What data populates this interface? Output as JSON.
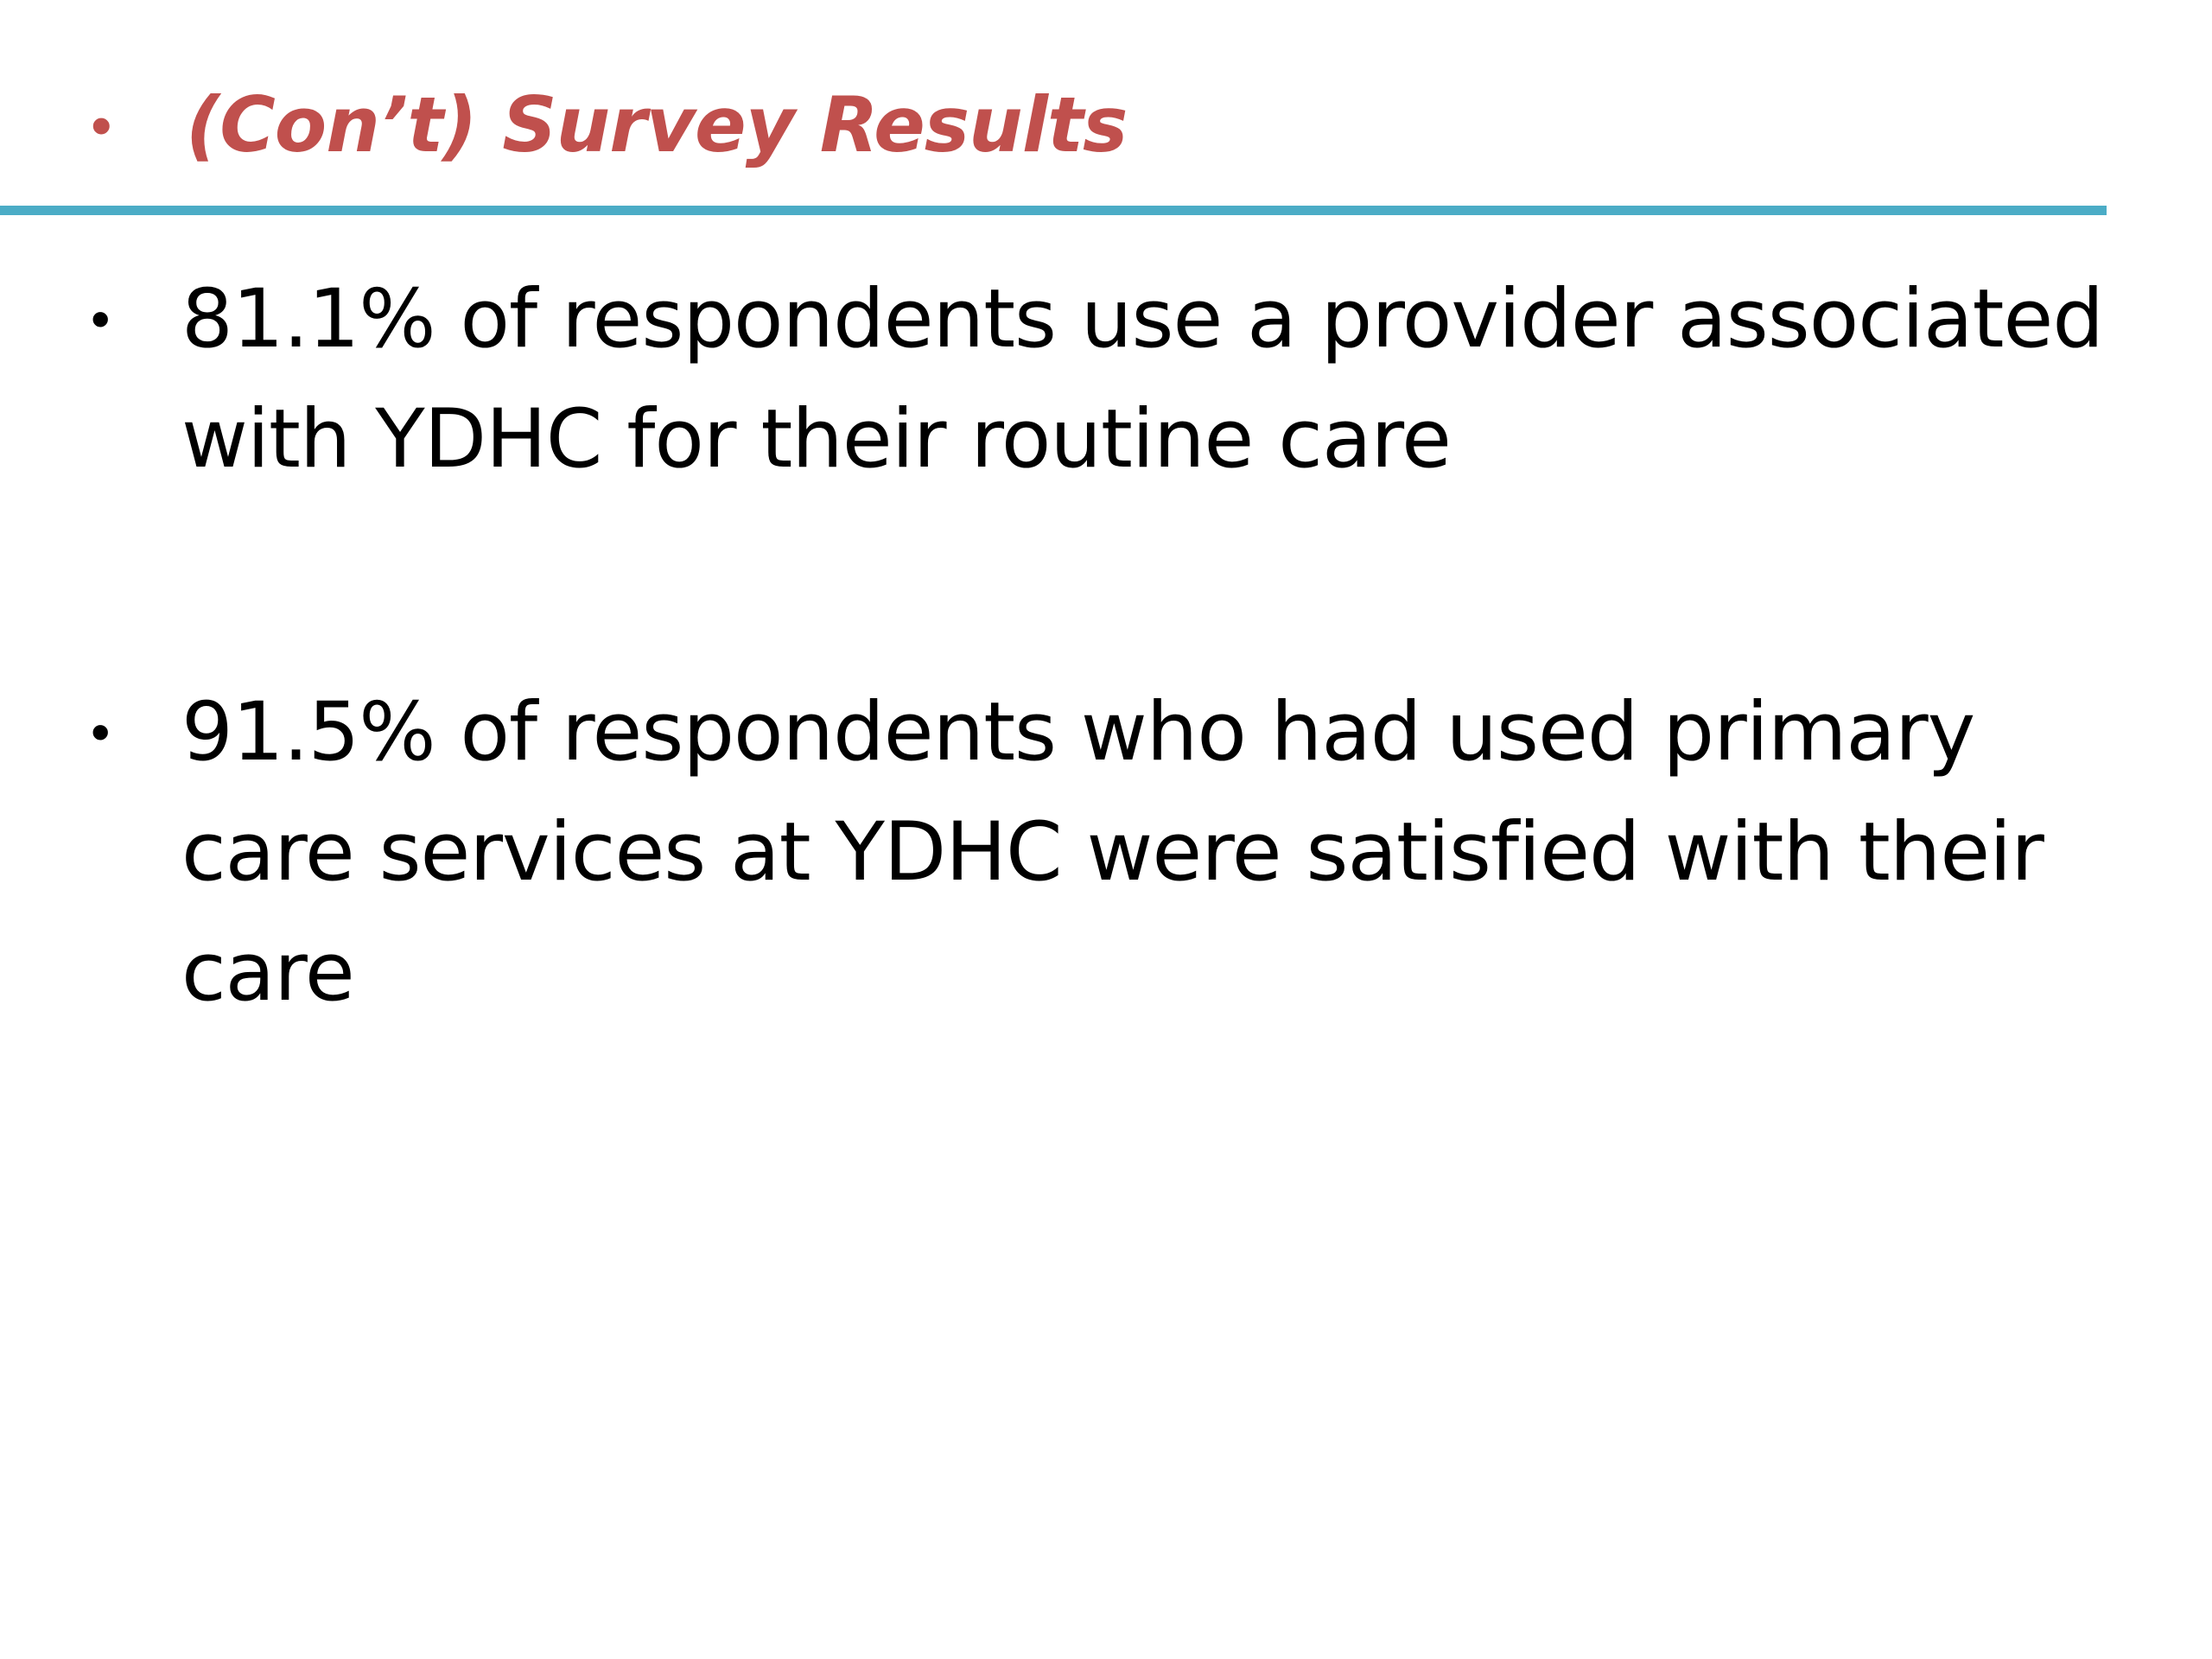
{
  "colors": {
    "title": "#c0504d",
    "rule": "#4bacc6",
    "text": "#000000",
    "background": "#ffffff"
  },
  "title": {
    "bullet": "•",
    "text": "(Con’t) Survey Results"
  },
  "bullets": [
    {
      "bullet": "•",
      "text": "81.1% of respondents use a provider associated with YDHC for their routine care"
    },
    {
      "bullet": "•",
      "text": "91.5% of respondents who had used primary care services at YDHC were satisfied with their care"
    }
  ]
}
